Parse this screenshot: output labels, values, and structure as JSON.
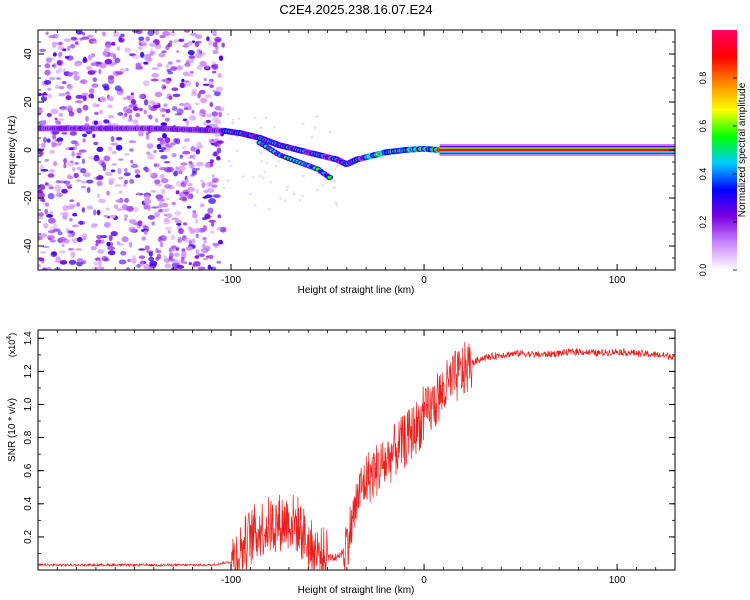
{
  "title": "C2E4.2025.238.16.07.E24",
  "chart_data": [
    {
      "type": "heatmap",
      "name": "spectrogram",
      "xlabel": "Height of straight line (km)",
      "ylabel": "Frequency (Hz)",
      "xlim": [
        -200,
        130
      ],
      "ylim": [
        -50,
        50
      ],
      "xticks": [
        -100,
        0,
        100
      ],
      "xtick_labels": [
        "-100",
        "0",
        "100"
      ],
      "yticks": [
        -40,
        -20,
        0,
        20,
        40
      ],
      "ytick_labels": [
        "-40",
        "-20",
        "0",
        "20",
        "40"
      ],
      "noise_region_x": [
        -200,
        -104
      ],
      "ridge_centerline": [
        {
          "x": -200,
          "y": 9
        },
        {
          "x": -140,
          "y": 9
        },
        {
          "x": -104,
          "y": 8
        },
        {
          "x": -95,
          "y": 7
        },
        {
          "x": -85,
          "y": 5
        },
        {
          "x": -75,
          "y": 2
        },
        {
          "x": -65,
          "y": 0
        },
        {
          "x": -55,
          "y": -2
        },
        {
          "x": -45,
          "y": -4
        },
        {
          "x": -40,
          "y": -6
        },
        {
          "x": -35,
          "y": -4
        },
        {
          "x": -30,
          "y": -3
        },
        {
          "x": -20,
          "y": -1
        },
        {
          "x": -10,
          "y": 0
        },
        {
          "x": 0,
          "y": 0.5
        },
        {
          "x": 8,
          "y": 0
        },
        {
          "x": 130,
          "y": 0
        }
      ],
      "secondary_branch": [
        {
          "x": -85,
          "y": 3
        },
        {
          "x": -75,
          "y": -2
        },
        {
          "x": -65,
          "y": -5
        },
        {
          "x": -55,
          "y": -8
        },
        {
          "x": -48,
          "y": -12
        }
      ],
      "colorbar": {
        "label": "Normalized spectral amplitude",
        "range": [
          0,
          1
        ],
        "ticks": [
          0.0,
          0.2,
          0.4,
          0.6,
          0.8
        ],
        "tick_labels": [
          "0.0",
          "0.2",
          "0.4",
          "0.6",
          "0.8"
        ],
        "colormap": [
          "#ffffff",
          "#cc88ff",
          "#7a00e0",
          "#0000ff",
          "#00ccff",
          "#00ff00",
          "#ffff00",
          "#ff8800",
          "#ff0000",
          "#ff0066"
        ]
      }
    },
    {
      "type": "line",
      "name": "snr",
      "xlabel": "Height of straight line (km)",
      "ylabel": "SNR (10 * v/v)",
      "scale_label": "(x10",
      "scale_exponent": "4",
      "scale_suffix": ")",
      "xlim": [
        -200,
        130
      ],
      "ylim": [
        0,
        1.45
      ],
      "xticks": [
        -100,
        0,
        100
      ],
      "xtick_labels": [
        "-100",
        "0",
        "100"
      ],
      "yticks": [
        0.2,
        0.4,
        0.6,
        0.8,
        1.0,
        1.2,
        1.4
      ],
      "ytick_labels": [
        "0.2",
        "0.4",
        "0.6",
        "0.8",
        "1.0",
        "1.2",
        "1.4"
      ],
      "line_color": "#e8211f",
      "envelope": [
        {
          "x": -200,
          "y": 0.03
        },
        {
          "x": -110,
          "y": 0.03
        },
        {
          "x": -100,
          "y": 0.05
        },
        {
          "x": -95,
          "y": 0.12
        },
        {
          "x": -90,
          "y": 0.2
        },
        {
          "x": -85,
          "y": 0.25
        },
        {
          "x": -78,
          "y": 0.28
        },
        {
          "x": -70,
          "y": 0.3
        },
        {
          "x": -65,
          "y": 0.27
        },
        {
          "x": -62,
          "y": 0.2
        },
        {
          "x": -58,
          "y": 0.12
        },
        {
          "x": -52,
          "y": 0.08
        },
        {
          "x": -47,
          "y": 0.07
        },
        {
          "x": -42,
          "y": 0.1
        },
        {
          "x": -38,
          "y": 0.25
        },
        {
          "x": -34,
          "y": 0.45
        },
        {
          "x": -30,
          "y": 0.55
        },
        {
          "x": -25,
          "y": 0.6
        },
        {
          "x": -20,
          "y": 0.65
        },
        {
          "x": -15,
          "y": 0.72
        },
        {
          "x": -10,
          "y": 0.78
        },
        {
          "x": -5,
          "y": 0.85
        },
        {
          "x": 0,
          "y": 0.92
        },
        {
          "x": 5,
          "y": 1.0
        },
        {
          "x": 10,
          "y": 1.08
        },
        {
          "x": 15,
          "y": 1.15
        },
        {
          "x": 20,
          "y": 1.2
        },
        {
          "x": 25,
          "y": 1.25
        },
        {
          "x": 30,
          "y": 1.28
        },
        {
          "x": 40,
          "y": 1.3
        },
        {
          "x": 50,
          "y": 1.31
        },
        {
          "x": 60,
          "y": 1.3
        },
        {
          "x": 70,
          "y": 1.31
        },
        {
          "x": 80,
          "y": 1.32
        },
        {
          "x": 90,
          "y": 1.31
        },
        {
          "x": 100,
          "y": 1.32
        },
        {
          "x": 110,
          "y": 1.31
        },
        {
          "x": 120,
          "y": 1.3
        },
        {
          "x": 130,
          "y": 1.29
        }
      ]
    }
  ]
}
